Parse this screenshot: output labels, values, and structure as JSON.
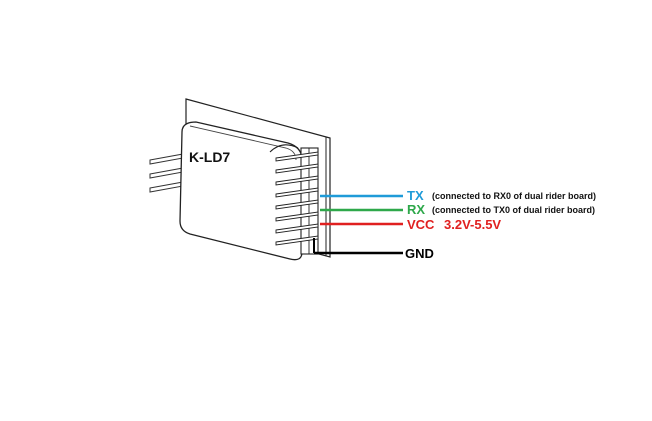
{
  "module_label": "K-LD7",
  "colors": {
    "tx": "#1f9bd8",
    "rx": "#2ea84a",
    "vcc": "#e02020",
    "gnd": "#000000",
    "outline": "#222222"
  },
  "connections": [
    {
      "id": "tx",
      "label": "TX",
      "note": "(connected to RX0 of dual rider board)",
      "range": "",
      "color": "#1f9bd8"
    },
    {
      "id": "rx",
      "label": "RX",
      "note": "(connected to TX0 of dual rider board)",
      "range": "",
      "color": "#2ea84a"
    },
    {
      "id": "vcc",
      "label": "VCC",
      "note": "",
      "range": "3.2V-5.5V",
      "color": "#e02020"
    },
    {
      "id": "gnd",
      "label": "GND",
      "note": "",
      "range": "",
      "color": "#000000"
    }
  ]
}
